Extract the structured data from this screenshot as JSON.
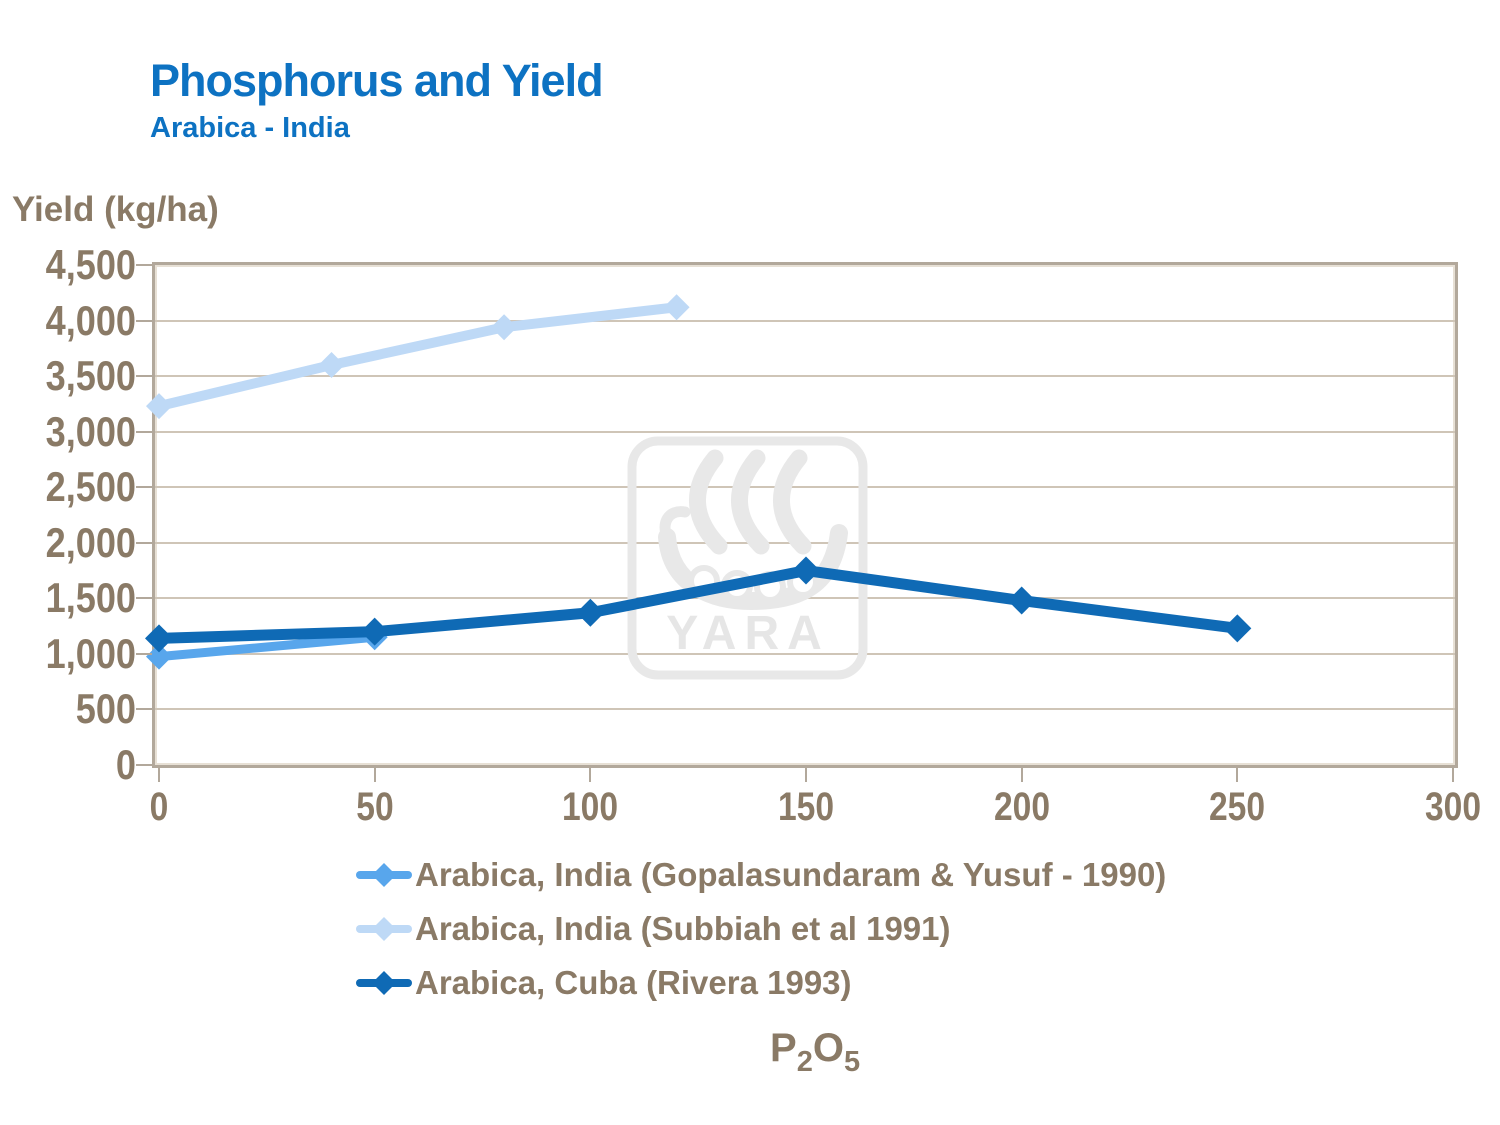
{
  "header": {
    "title": "Phosphorus and Yield",
    "subtitle": "Arabica - India"
  },
  "y_axis": {
    "title": "Yield (kg/ha)",
    "tick_labels": [
      "4,500",
      "4,000",
      "3,500",
      "3,000",
      "2,500",
      "2,000",
      "1,500",
      "1,000",
      "500",
      "0"
    ]
  },
  "x_axis": {
    "tick_labels": [
      "0",
      "50",
      "100",
      "150",
      "200",
      "250",
      "300"
    ],
    "title_parts": [
      "P",
      "2",
      "O",
      "5"
    ]
  },
  "watermark": {
    "text": "YARA"
  },
  "colors": {
    "title_blue": "#0d72c2",
    "axis_text": "#8a7a66",
    "gridline": "#cfc5b7",
    "plot_border": "#b2a89b",
    "watermark_gray": "#e8e8e8"
  },
  "chart_data": {
    "type": "line",
    "title": "Phosphorus and Yield",
    "subtitle": "Arabica - India",
    "xlabel": "P2O5",
    "ylabel": "Yield (kg/ha)",
    "xlim": [
      0,
      300
    ],
    "ylim": [
      0,
      4500
    ],
    "x_ticks": [
      0,
      50,
      100,
      150,
      200,
      250,
      300
    ],
    "y_ticks": [
      0,
      500,
      1000,
      1500,
      2000,
      2500,
      3000,
      3500,
      4000,
      4500
    ],
    "grid": true,
    "legend_position": "bottom",
    "series": [
      {
        "name": "Arabica, India (Gopalasundaram & Yusuf - 1990)",
        "color": "#58a6ec",
        "marker": "diamond",
        "line_width": 9,
        "marker_size": 13,
        "points": [
          [
            0,
            975
          ],
          [
            50,
            1150
          ]
        ]
      },
      {
        "name": "Arabica, India (Subbiah et al 1991)",
        "color": "#bed9f6",
        "marker": "diamond",
        "line_width": 10,
        "marker_size": 13,
        "points": [
          [
            0,
            3230
          ],
          [
            40,
            3600
          ],
          [
            80,
            3940
          ],
          [
            120,
            4120
          ]
        ]
      },
      {
        "name": "Arabica, Cuba (Rivera 1993)",
        "color": "#0f6ab5",
        "marker": "diamond",
        "line_width": 11,
        "marker_size": 14,
        "points": [
          [
            0,
            1140
          ],
          [
            50,
            1200
          ],
          [
            100,
            1370
          ],
          [
            150,
            1750
          ],
          [
            200,
            1480
          ],
          [
            250,
            1230
          ]
        ]
      }
    ]
  }
}
